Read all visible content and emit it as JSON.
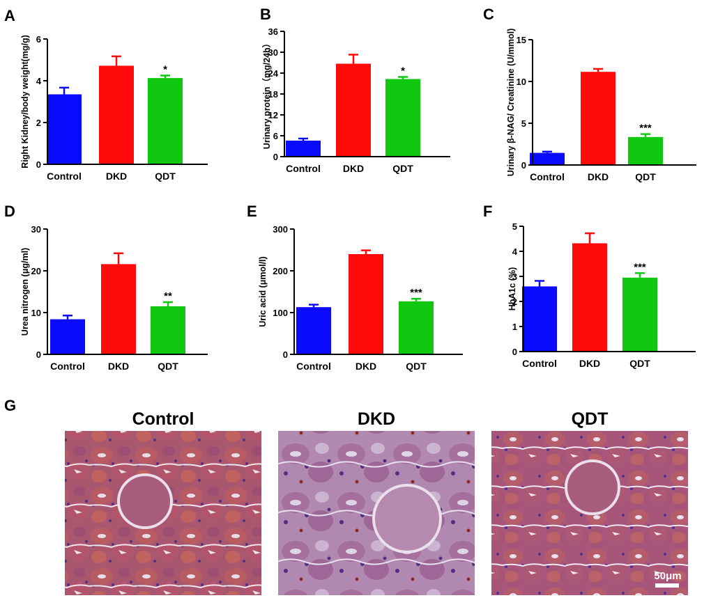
{
  "colors": {
    "Control": "#0a0aff",
    "DKD": "#ff0a0a",
    "QDT": "#11c811",
    "axis": "#000000"
  },
  "chart_data": [
    {
      "panel": "A",
      "type": "bar",
      "categories": [
        "Control",
        "DKD",
        "QDT"
      ],
      "values": [
        3.35,
        4.72,
        4.13
      ],
      "errors": [
        0.32,
        0.45,
        0.12
      ],
      "significance": [
        "",
        "",
        "*"
      ],
      "ylabel": "Right Kidney/body weight(mg/g)",
      "ylim": [
        0,
        6
      ],
      "yticks": [
        0,
        2,
        4,
        6
      ]
    },
    {
      "panel": "B",
      "type": "bar",
      "categories": [
        "Control",
        "DKD",
        "QDT"
      ],
      "values": [
        4.6,
        26.7,
        22.3
      ],
      "errors": [
        0.6,
        2.6,
        0.6
      ],
      "significance": [
        "",
        "",
        "*"
      ],
      "ylabel": "Urinary protein（mg/24h）",
      "ylim": [
        0,
        36
      ],
      "yticks": [
        0,
        6,
        12,
        18,
        24,
        30,
        36
      ]
    },
    {
      "panel": "C",
      "type": "bar",
      "categories": [
        "Control",
        "DKD",
        "QDT"
      ],
      "values": [
        1.45,
        11.15,
        3.35
      ],
      "errors": [
        0.15,
        0.35,
        0.35
      ],
      "significance": [
        "",
        "",
        "***"
      ],
      "ylabel": "Urinary β-NAG/ Creatinine (U/mmol)",
      "ylim": [
        0,
        15
      ],
      "yticks": [
        0,
        5,
        10,
        15
      ]
    },
    {
      "panel": "D",
      "type": "bar",
      "categories": [
        "Control",
        "DKD",
        "QDT"
      ],
      "values": [
        8.4,
        21.6,
        11.5
      ],
      "errors": [
        0.9,
        2.6,
        1.0
      ],
      "significance": [
        "",
        "",
        "**"
      ],
      "ylabel": "Urea nitrogen (μg/ml)",
      "ylim": [
        0,
        30
      ],
      "yticks": [
        0,
        10,
        20,
        30
      ]
    },
    {
      "panel": "E",
      "type": "bar",
      "categories": [
        "Control",
        "DKD",
        "QDT"
      ],
      "values": [
        113,
        240,
        127
      ],
      "errors": [
        6,
        9,
        6
      ],
      "significance": [
        "",
        "",
        "***"
      ],
      "ylabel": "Uric acid (μmol/l)",
      "ylim": [
        0,
        300
      ],
      "yticks": [
        0,
        100,
        200,
        300
      ]
    },
    {
      "panel": "F",
      "type": "bar",
      "categories": [
        "Control",
        "DKD",
        "QDT"
      ],
      "values": [
        2.6,
        4.32,
        2.95
      ],
      "errors": [
        0.22,
        0.4,
        0.18
      ],
      "significance": [
        "",
        "",
        "***"
      ],
      "ylabel": "HbA1c (%)",
      "ylim": [
        0,
        5
      ],
      "yticks": [
        0,
        1,
        2,
        3,
        4,
        5
      ]
    }
  ],
  "histology": {
    "panel_label": "G",
    "titles": [
      "Control",
      "DKD",
      "QDT"
    ],
    "scale_bar": "50μm"
  }
}
